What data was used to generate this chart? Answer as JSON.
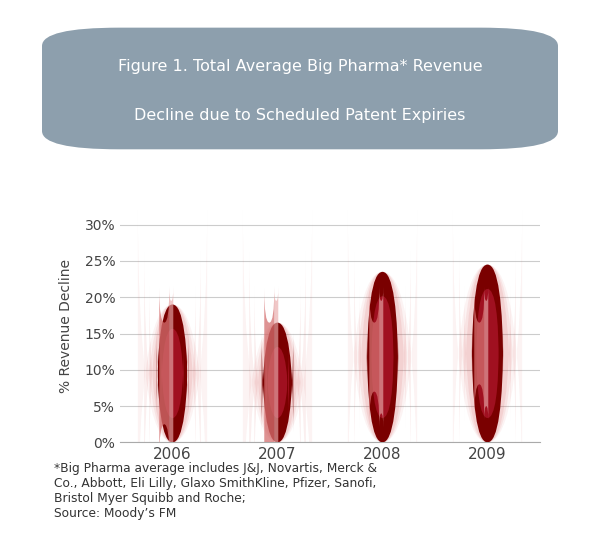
{
  "years": [
    "2006",
    "2007",
    "2008",
    "2009"
  ],
  "values": [
    0.19,
    0.165,
    0.235,
    0.245
  ],
  "bar_dark": "#7A0000",
  "bar_mid": "#A01020",
  "bar_light": "#D47070",
  "bar_highlight": "#E8AAAA",
  "glow_color": "#CC3333",
  "title_line1": "Figure 1. Total Average Big Pharma* Revenue",
  "title_line2": "Decline due to Scheduled Patent Expiries",
  "title_bg_color": "#8D9FAD",
  "title_text_color": "#FFFFFF",
  "ylabel": "% Revenue Decline",
  "yticks": [
    0.0,
    0.05,
    0.1,
    0.15,
    0.2,
    0.25,
    0.3
  ],
  "ytick_labels": [
    "0%",
    "5%",
    "10%",
    "15%",
    "20%",
    "25%",
    "30%"
  ],
  "background_color": "#FFFFFF",
  "grid_color": "#CCCCCC",
  "footnote_line1": "*Big Pharma average includes J&J, Novartis, Merck &",
  "footnote_line2": "Co., Abbott, Eli Lilly, Glaxo SmithKline, Pfizer, Sanofi,",
  "footnote_line3": "Bristol Myer Squibb and Roche;",
  "footnote_line4": "Source: Moody’s FM"
}
